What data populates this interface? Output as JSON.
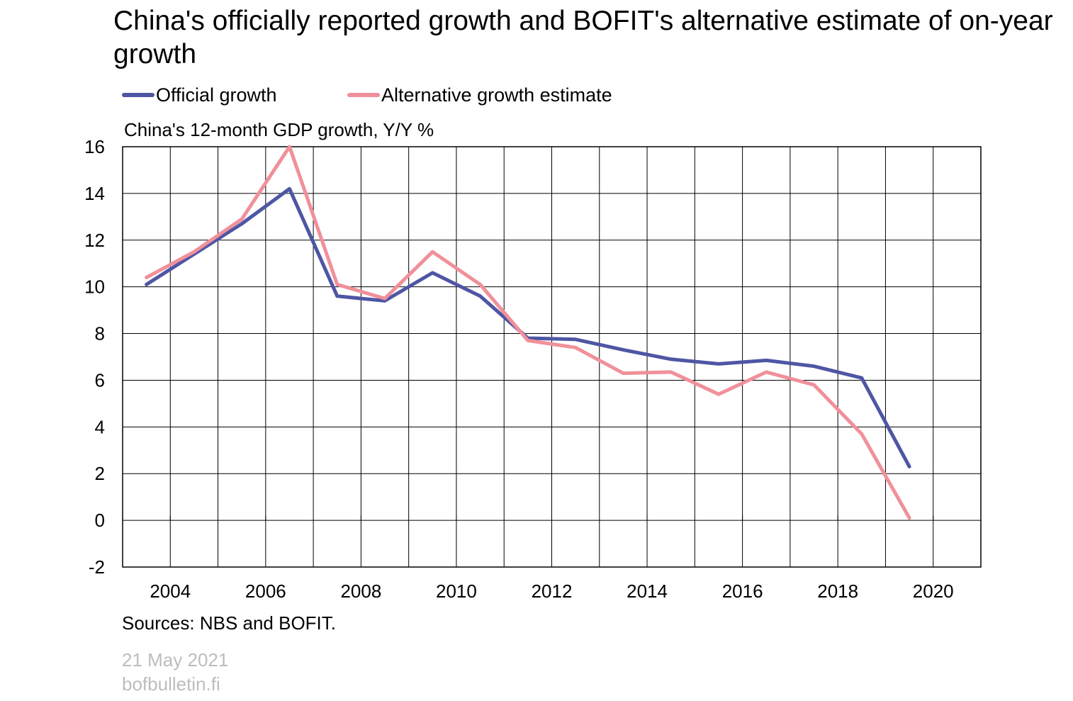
{
  "chart_data": {
    "type": "line",
    "title": "China's officially reported growth and BOFIT's alternative estimate of on-year growth",
    "ylabel": "China's 12-month GDP growth, Y/Y %",
    "ylim": [
      -2,
      16
    ],
    "yticks": [
      16,
      14,
      12,
      10,
      8,
      6,
      4,
      2,
      0,
      -2
    ],
    "xlim": [
      2003,
      2021
    ],
    "xticks": [
      2004,
      2006,
      2008,
      2010,
      2012,
      2014,
      2016,
      2018,
      2020
    ],
    "grid": true,
    "legend_position": "top",
    "x": [
      2003.5,
      2004.5,
      2005.5,
      2006.5,
      2007.5,
      2008.5,
      2009.5,
      2010.5,
      2011.5,
      2012.5,
      2013.5,
      2014.5,
      2015.5,
      2016.5,
      2017.5,
      2018.5,
      2019.5
    ],
    "series": [
      {
        "name": "Official growth",
        "color": "#4e56a4",
        "values": [
          10.1,
          11.4,
          12.7,
          14.2,
          9.6,
          9.4,
          10.6,
          9.6,
          7.8,
          7.75,
          7.3,
          6.9,
          6.7,
          6.85,
          6.6,
          6.1,
          2.3
        ]
      },
      {
        "name": "Alternative growth estimate",
        "color": "#f0909a",
        "values": [
          10.4,
          11.5,
          12.9,
          16.0,
          10.1,
          9.5,
          11.5,
          10.1,
          7.7,
          7.4,
          6.3,
          6.35,
          5.4,
          6.35,
          5.8,
          3.7,
          0.1
        ]
      }
    ]
  },
  "footer": {
    "source": "Sources: NBS and BOFIT.",
    "date": "21 May 2021",
    "site": "bofbulletin.fi"
  }
}
